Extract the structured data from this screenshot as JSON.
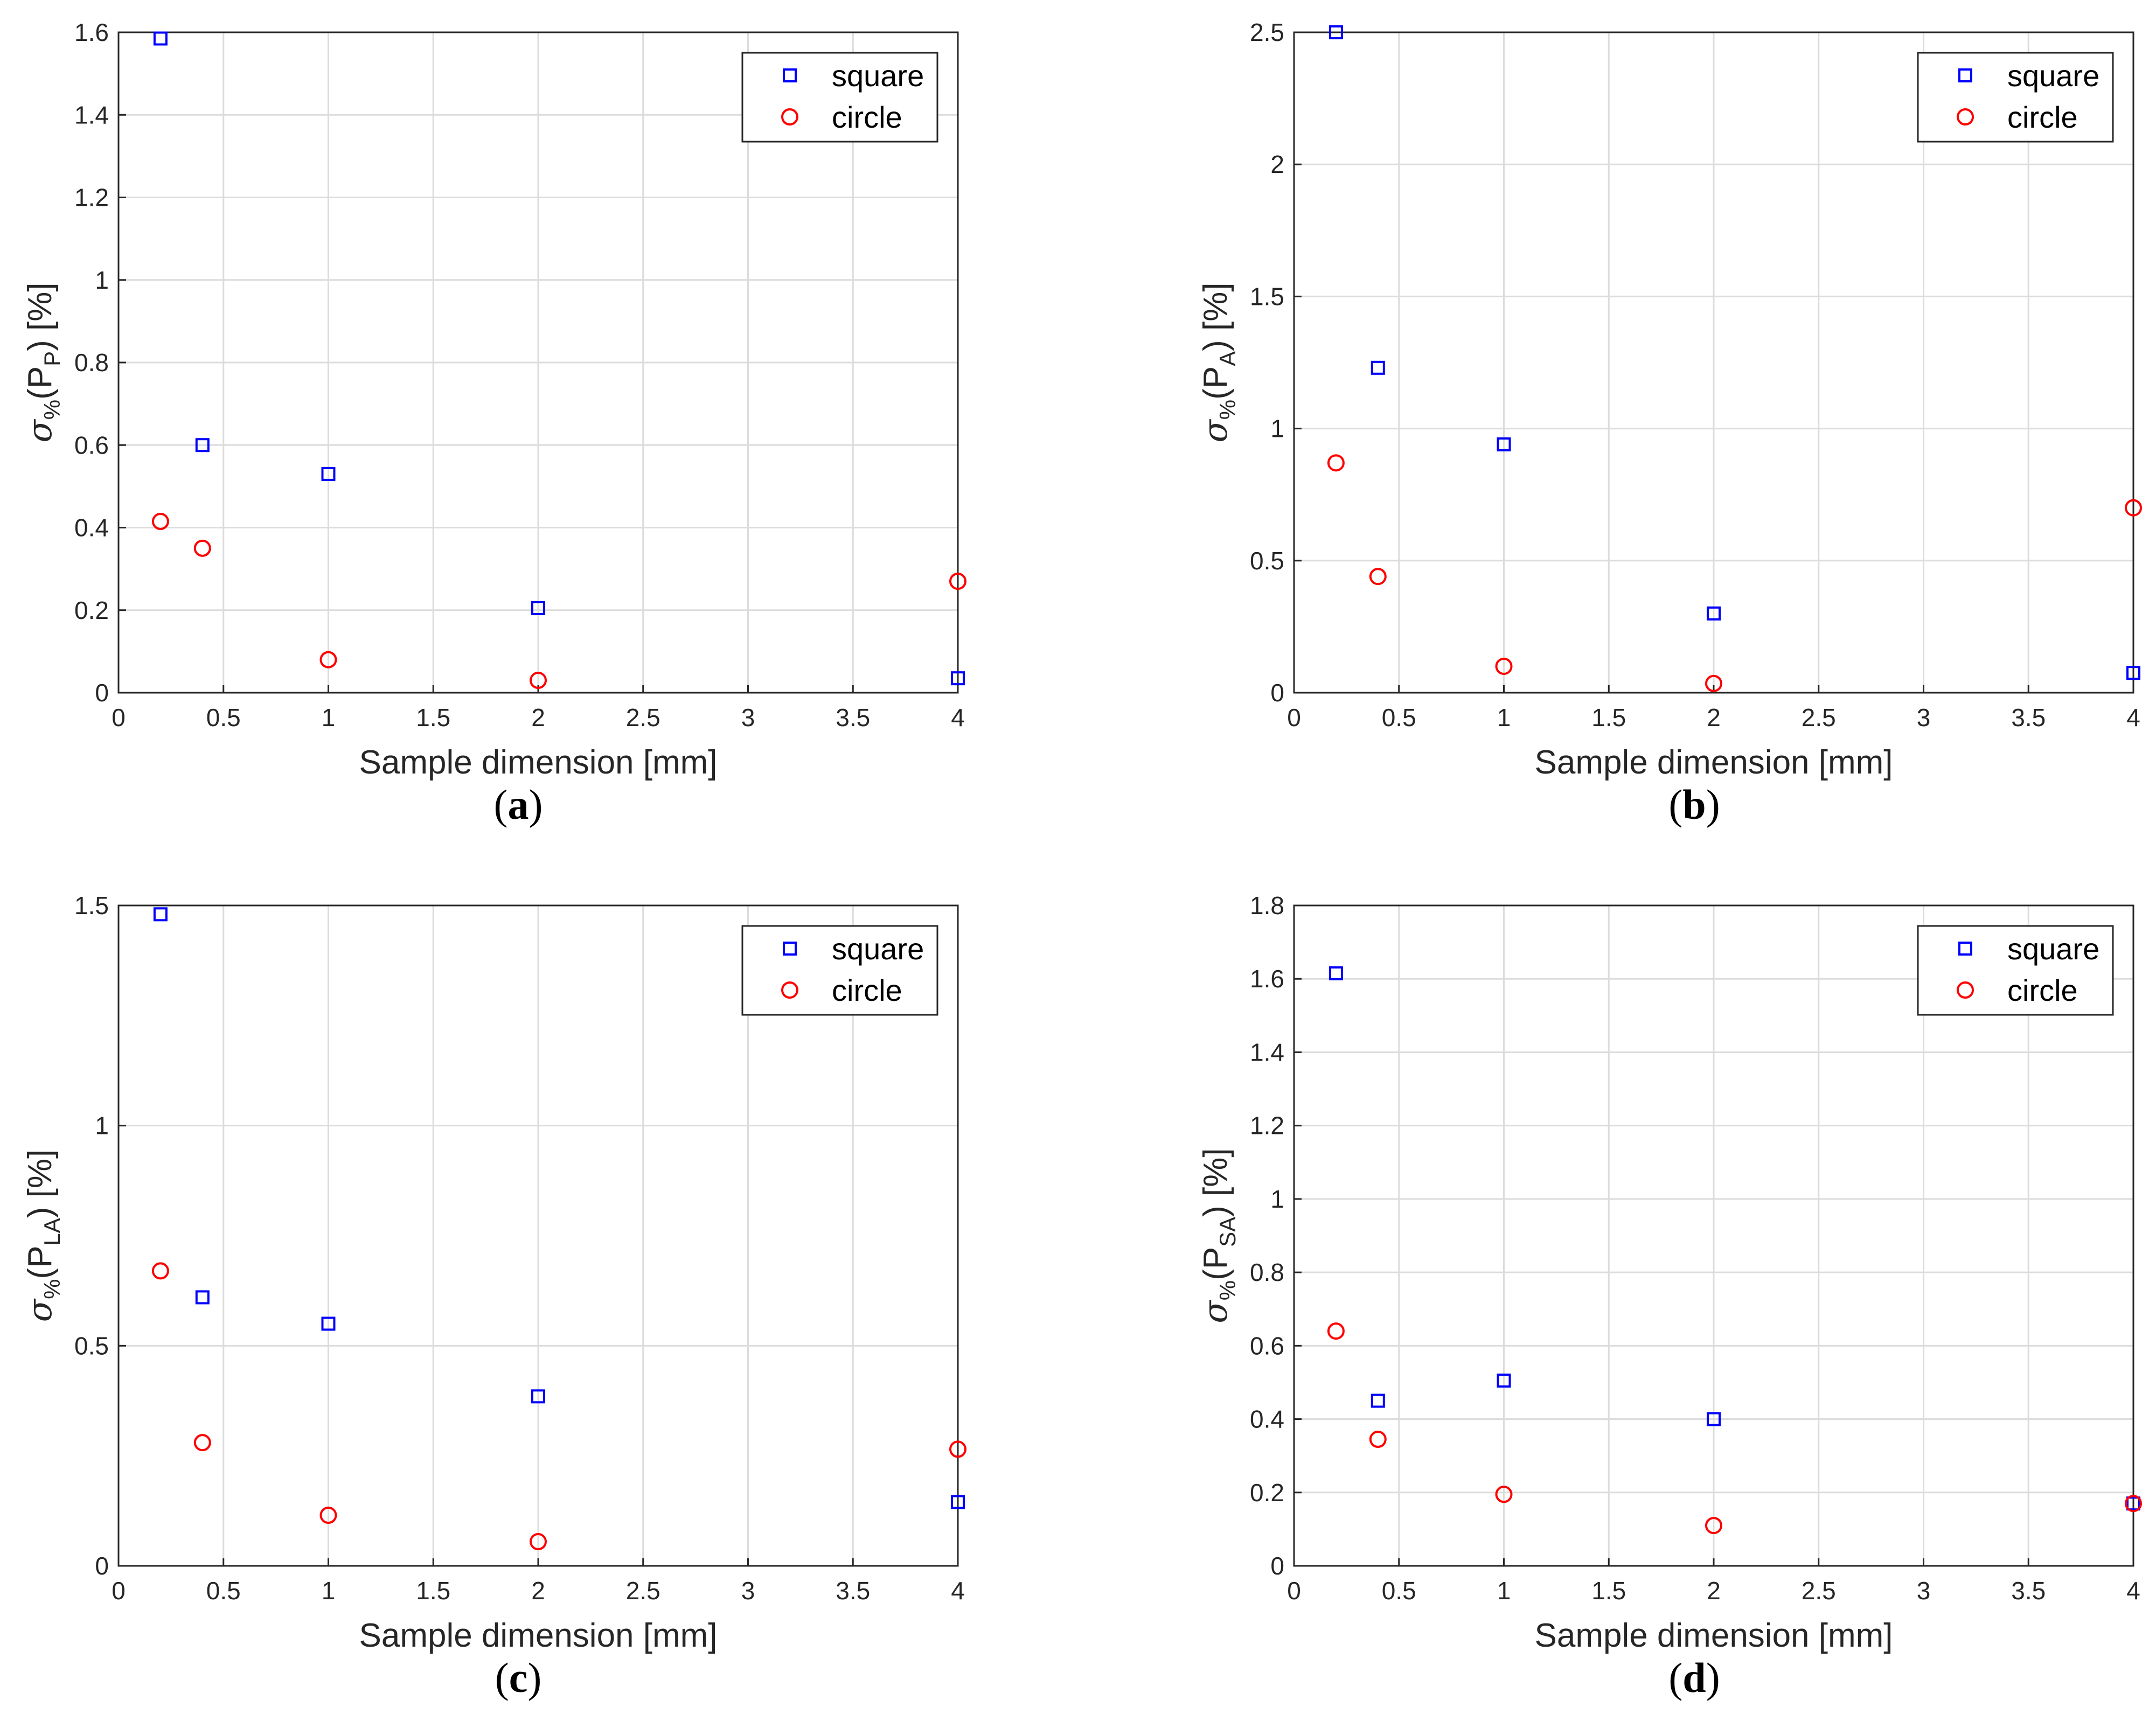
{
  "figure": {
    "colors": {
      "square": "#0000ff",
      "circle": "#ff0000"
    }
  },
  "chart_data": [
    {
      "panel": "a",
      "type": "scatter",
      "caption": {
        "open": "(",
        "letter": "a",
        "close": ")"
      },
      "xlabel": "Sample dimension [mm]",
      "ylabel": {
        "main": "σ",
        "main_sub": "%",
        "open": "(P",
        "sub": "P",
        "close": ") [%]"
      },
      "xlim": [
        0,
        4
      ],
      "ylim": [
        0,
        1.6
      ],
      "xticks": [
        0,
        0.5,
        1,
        1.5,
        2,
        2.5,
        3,
        3.5,
        4
      ],
      "xtick_labels": [
        "0",
        "0.5",
        "1",
        "1.5",
        "2",
        "2.5",
        "3",
        "3.5",
        "4"
      ],
      "yticks": [
        0,
        0.2,
        0.4,
        0.6,
        0.8,
        1,
        1.2,
        1.4,
        1.6
      ],
      "ytick_labels": [
        "0",
        "0.2",
        "0.4",
        "0.6",
        "0.8",
        "1",
        "1.2",
        "1.4",
        "1.6"
      ],
      "legend": {
        "position": "top-right",
        "entries": [
          "square",
          "circle"
        ]
      },
      "x": [
        0.2,
        0.4,
        1,
        2,
        4
      ],
      "series": [
        {
          "name": "square",
          "marker": "square",
          "values": [
            1.585,
            0.6,
            0.53,
            0.205,
            0.035
          ]
        },
        {
          "name": "circle",
          "marker": "circle",
          "values": [
            0.415,
            0.35,
            0.08,
            0.03,
            0.27
          ]
        }
      ]
    },
    {
      "panel": "b",
      "type": "scatter",
      "caption": {
        "open": "(",
        "letter": "b",
        "close": ")"
      },
      "xlabel": "Sample dimension [mm]",
      "ylabel": {
        "main": "σ",
        "main_sub": "%",
        "open": "(P",
        "sub": "A",
        "close": ") [%]"
      },
      "xlim": [
        0,
        4
      ],
      "ylim": [
        0,
        2.5
      ],
      "xticks": [
        0,
        0.5,
        1,
        1.5,
        2,
        2.5,
        3,
        3.5,
        4
      ],
      "xtick_labels": [
        "0",
        "0.5",
        "1",
        "1.5",
        "2",
        "2.5",
        "3",
        "3.5",
        "4"
      ],
      "yticks": [
        0,
        0.5,
        1,
        1.5,
        2,
        2.5
      ],
      "ytick_labels": [
        "0",
        "0.5",
        "1",
        "1.5",
        "2",
        "2.5"
      ],
      "legend": {
        "position": "top-right",
        "entries": [
          "square",
          "circle"
        ]
      },
      "x": [
        0.2,
        0.4,
        1,
        2,
        4
      ],
      "series": [
        {
          "name": "square",
          "marker": "square",
          "values": [
            2.5,
            1.23,
            0.94,
            0.3,
            0.075
          ]
        },
        {
          "name": "circle",
          "marker": "circle",
          "values": [
            0.87,
            0.44,
            0.1,
            0.035,
            0.7
          ]
        }
      ]
    },
    {
      "panel": "c",
      "type": "scatter",
      "caption": {
        "open": "(",
        "letter": "c",
        "close": ")"
      },
      "xlabel": "Sample dimension [mm]",
      "ylabel": {
        "main": "σ",
        "main_sub": "%",
        "open": "(P",
        "sub": "LA",
        "close": ") [%]"
      },
      "xlim": [
        0,
        4
      ],
      "ylim": [
        0,
        1.5
      ],
      "xticks": [
        0,
        0.5,
        1,
        1.5,
        2,
        2.5,
        3,
        3.5,
        4
      ],
      "xtick_labels": [
        "0",
        "0.5",
        "1",
        "1.5",
        "2",
        "2.5",
        "3",
        "3.5",
        "4"
      ],
      "yticks": [
        0,
        0.5,
        1,
        1.5
      ],
      "ytick_labels": [
        "0",
        "0.5",
        "1",
        "1.5"
      ],
      "legend": {
        "position": "top-right",
        "entries": [
          "square",
          "circle"
        ]
      },
      "x": [
        0.2,
        0.4,
        1,
        2,
        4
      ],
      "series": [
        {
          "name": "square",
          "marker": "square",
          "values": [
            1.48,
            0.61,
            0.55,
            0.385,
            0.145
          ]
        },
        {
          "name": "circle",
          "marker": "circle",
          "values": [
            0.67,
            0.28,
            0.115,
            0.055,
            0.265
          ]
        }
      ]
    },
    {
      "panel": "d",
      "type": "scatter",
      "caption": {
        "open": "(",
        "letter": "d",
        "close": ")"
      },
      "xlabel": "Sample dimension [mm]",
      "ylabel": {
        "main": "σ",
        "main_sub": "%",
        "open": "(P",
        "sub": "SA",
        "close": ") [%]"
      },
      "xlim": [
        0,
        4
      ],
      "ylim": [
        0,
        1.8
      ],
      "xticks": [
        0,
        0.5,
        1,
        1.5,
        2,
        2.5,
        3,
        3.5,
        4
      ],
      "xtick_labels": [
        "0",
        "0.5",
        "1",
        "1.5",
        "2",
        "2.5",
        "3",
        "3.5",
        "4"
      ],
      "yticks": [
        0,
        0.2,
        0.4,
        0.6,
        0.8,
        1,
        1.2,
        1.4,
        1.6,
        1.8
      ],
      "ytick_labels": [
        "0",
        "0.2",
        "0.4",
        "0.6",
        "0.8",
        "1",
        "1.2",
        "1.4",
        "1.6",
        "1.8"
      ],
      "legend": {
        "position": "top-right",
        "entries": [
          "square",
          "circle"
        ]
      },
      "x": [
        0.2,
        0.4,
        1,
        2,
        4
      ],
      "series": [
        {
          "name": "square",
          "marker": "square",
          "values": [
            1.615,
            0.45,
            0.505,
            0.4,
            0.17
          ]
        },
        {
          "name": "circle",
          "marker": "circle",
          "values": [
            0.64,
            0.345,
            0.195,
            0.11,
            0.17
          ]
        }
      ]
    }
  ]
}
